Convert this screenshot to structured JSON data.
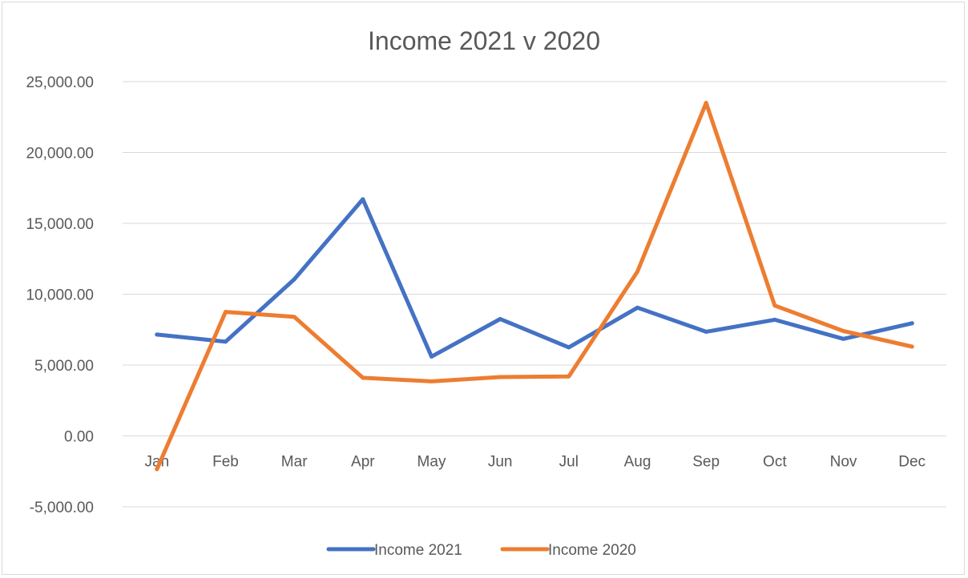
{
  "chart_data": {
    "type": "line",
    "title": "Income 2021 v 2020",
    "xlabel": "",
    "ylabel": "",
    "categories": [
      "Jan",
      "Feb",
      "Mar",
      "Apr",
      "May",
      "Jun",
      "Jul",
      "Aug",
      "Sep",
      "Oct",
      "Nov",
      "Dec"
    ],
    "y_ticks": [
      "-5,000.00",
      "0.00",
      "5,000.00",
      "10,000.00",
      "15,000.00",
      "20,000.00",
      "25,000.00"
    ],
    "y_tick_values": [
      -5000,
      0,
      5000,
      10000,
      15000,
      20000,
      25000
    ],
    "ylim": [
      -5000,
      25000
    ],
    "grid": true,
    "legend_position": "bottom",
    "series": [
      {
        "name": "Income 2021",
        "color": "#4472C4",
        "values": [
          7150,
          6650,
          11050,
          16700,
          5600,
          8250,
          6250,
          9050,
          7350,
          8200,
          6850,
          7950
        ]
      },
      {
        "name": "Income 2020",
        "color": "#ED7D31",
        "values": [
          -2350,
          8750,
          8400,
          4100,
          3850,
          4150,
          4200,
          11600,
          23500,
          9200,
          7400,
          6300
        ]
      }
    ]
  }
}
